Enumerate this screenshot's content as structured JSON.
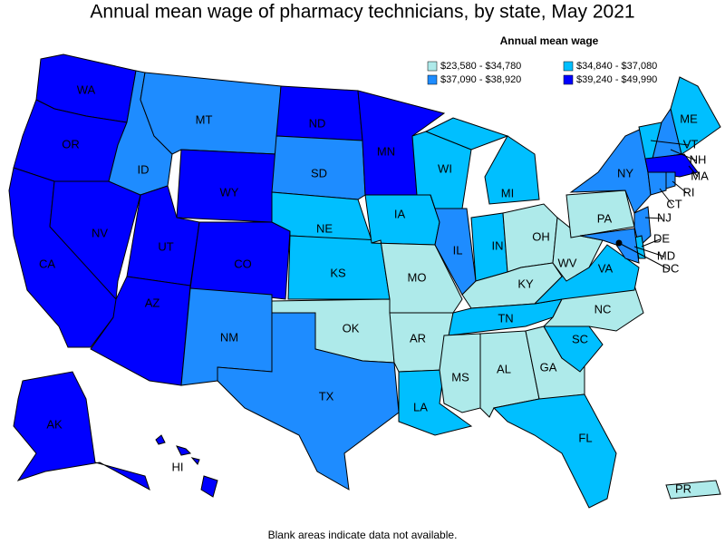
{
  "title": "Annual mean wage of pharmacy technicians, by state, May 2021",
  "legend": {
    "title": "Annual mean wage",
    "bins": [
      {
        "label": "$23,580 - $34,780",
        "color": "#aeeaea"
      },
      {
        "label": "$34,840 - $37,080",
        "color": "#00bfff"
      },
      {
        "label": "$37,090 - $38,920",
        "color": "#1e8cff"
      },
      {
        "label": "$39,240 - $49,990",
        "color": "#0000ff"
      }
    ]
  },
  "states": [
    {
      "abbr": "WA",
      "bin": 3
    },
    {
      "abbr": "OR",
      "bin": 3
    },
    {
      "abbr": "CA",
      "bin": 3
    },
    {
      "abbr": "NV",
      "bin": 3
    },
    {
      "abbr": "ID",
      "bin": 2
    },
    {
      "abbr": "MT",
      "bin": 2
    },
    {
      "abbr": "WY",
      "bin": 3
    },
    {
      "abbr": "UT",
      "bin": 3
    },
    {
      "abbr": "CO",
      "bin": 3
    },
    {
      "abbr": "AZ",
      "bin": 3
    },
    {
      "abbr": "NM",
      "bin": 2
    },
    {
      "abbr": "ND",
      "bin": 3
    },
    {
      "abbr": "SD",
      "bin": 2
    },
    {
      "abbr": "NE",
      "bin": 1
    },
    {
      "abbr": "KS",
      "bin": 1
    },
    {
      "abbr": "OK",
      "bin": 0
    },
    {
      "abbr": "TX",
      "bin": 2
    },
    {
      "abbr": "MN",
      "bin": 3
    },
    {
      "abbr": "IA",
      "bin": 1
    },
    {
      "abbr": "MO",
      "bin": 0
    },
    {
      "abbr": "AR",
      "bin": 0
    },
    {
      "abbr": "LA",
      "bin": 1
    },
    {
      "abbr": "WI",
      "bin": 1
    },
    {
      "abbr": "IL",
      "bin": 2
    },
    {
      "abbr": "MI",
      "bin": 1
    },
    {
      "abbr": "IN",
      "bin": 1
    },
    {
      "abbr": "OH",
      "bin": 0
    },
    {
      "abbr": "KY",
      "bin": 0
    },
    {
      "abbr": "TN",
      "bin": 1
    },
    {
      "abbr": "MS",
      "bin": 0
    },
    {
      "abbr": "AL",
      "bin": 0
    },
    {
      "abbr": "GA",
      "bin": 0
    },
    {
      "abbr": "FL",
      "bin": 1
    },
    {
      "abbr": "SC",
      "bin": 1
    },
    {
      "abbr": "NC",
      "bin": 0
    },
    {
      "abbr": "VA",
      "bin": 1
    },
    {
      "abbr": "WV",
      "bin": 0
    },
    {
      "abbr": "PA",
      "bin": 0
    },
    {
      "abbr": "NY",
      "bin": 2
    },
    {
      "abbr": "VT",
      "bin": 1
    },
    {
      "abbr": "NH",
      "bin": 2
    },
    {
      "abbr": "ME",
      "bin": 1
    },
    {
      "abbr": "MA",
      "bin": 3
    },
    {
      "abbr": "RI",
      "bin": 2
    },
    {
      "abbr": "CT",
      "bin": 2
    },
    {
      "abbr": "NJ",
      "bin": 2
    },
    {
      "abbr": "DE",
      "bin": 1
    },
    {
      "abbr": "MD",
      "bin": 2
    },
    {
      "abbr": "DC",
      "bin": 0
    },
    {
      "abbr": "AK",
      "bin": 3
    },
    {
      "abbr": "HI",
      "bin": 3
    },
    {
      "abbr": "PR",
      "bin": 0
    }
  ],
  "footnote": "Blank areas indicate data not available."
}
